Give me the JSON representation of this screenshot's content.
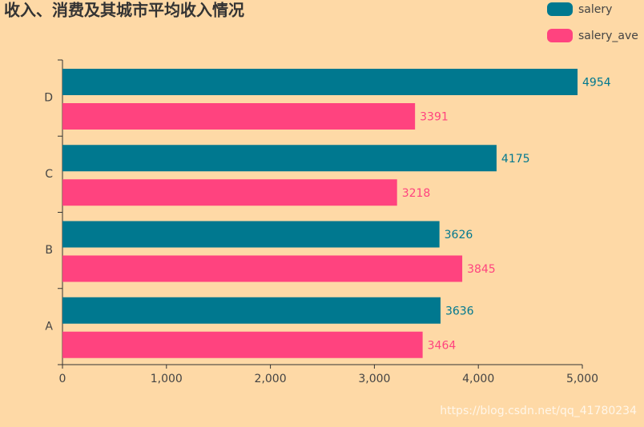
{
  "chart_data": {
    "type": "hbar",
    "title": "收入、消费及其城市平均收入情况",
    "categories": [
      "A",
      "B",
      "C",
      "D"
    ],
    "series": [
      {
        "name": "salery",
        "color": "#00788f",
        "values": [
          3636,
          3626,
          4175,
          4954
        ]
      },
      {
        "name": "salery_ave",
        "color": "#ff437f",
        "values": [
          3464,
          3845,
          3218,
          3391
        ]
      }
    ],
    "xlim": [
      0,
      5000
    ],
    "xticks": [
      0,
      {
        "value": 1000,
        "label": "1,000"
      },
      {
        "value": 2000,
        "label": "2,000"
      },
      {
        "value": 3000,
        "label": "3,000"
      },
      {
        "value": 4000,
        "label": "4,000"
      },
      {
        "value": 5000,
        "label": "5,000"
      }
    ],
    "legend": "top-right",
    "watermark": "https://blog.csdn.net/qq_41780234"
  }
}
